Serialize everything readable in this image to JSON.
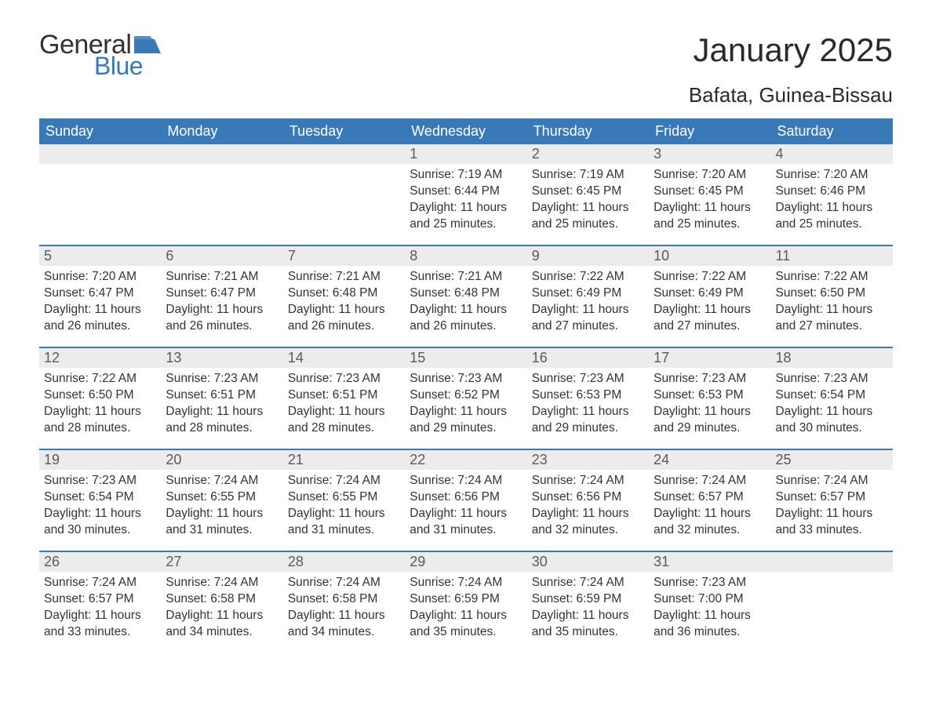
{
  "logo": {
    "text_general": "General",
    "text_blue": "Blue",
    "flag_color": "#3a79b7"
  },
  "title": "January 2025",
  "location": "Bafata, Guinea-Bissau",
  "colors": {
    "header_bg": "#3a79b7",
    "header_text": "#ffffff",
    "daynum_bg": "#ececec",
    "daynum_text": "#5a5a5a",
    "body_text": "#333333",
    "week_border": "#3a79b7",
    "page_bg": "#ffffff"
  },
  "day_headers": [
    "Sunday",
    "Monday",
    "Tuesday",
    "Wednesday",
    "Thursday",
    "Friday",
    "Saturday"
  ],
  "weeks": [
    [
      {
        "day": "",
        "sunrise": "",
        "sunset": "",
        "daylight": ""
      },
      {
        "day": "",
        "sunrise": "",
        "sunset": "",
        "daylight": ""
      },
      {
        "day": "",
        "sunrise": "",
        "sunset": "",
        "daylight": ""
      },
      {
        "day": "1",
        "sunrise": "Sunrise: 7:19 AM",
        "sunset": "Sunset: 6:44 PM",
        "daylight": "Daylight: 11 hours and 25 minutes."
      },
      {
        "day": "2",
        "sunrise": "Sunrise: 7:19 AM",
        "sunset": "Sunset: 6:45 PM",
        "daylight": "Daylight: 11 hours and 25 minutes."
      },
      {
        "day": "3",
        "sunrise": "Sunrise: 7:20 AM",
        "sunset": "Sunset: 6:45 PM",
        "daylight": "Daylight: 11 hours and 25 minutes."
      },
      {
        "day": "4",
        "sunrise": "Sunrise: 7:20 AM",
        "sunset": "Sunset: 6:46 PM",
        "daylight": "Daylight: 11 hours and 25 minutes."
      }
    ],
    [
      {
        "day": "5",
        "sunrise": "Sunrise: 7:20 AM",
        "sunset": "Sunset: 6:47 PM",
        "daylight": "Daylight: 11 hours and 26 minutes."
      },
      {
        "day": "6",
        "sunrise": "Sunrise: 7:21 AM",
        "sunset": "Sunset: 6:47 PM",
        "daylight": "Daylight: 11 hours and 26 minutes."
      },
      {
        "day": "7",
        "sunrise": "Sunrise: 7:21 AM",
        "sunset": "Sunset: 6:48 PM",
        "daylight": "Daylight: 11 hours and 26 minutes."
      },
      {
        "day": "8",
        "sunrise": "Sunrise: 7:21 AM",
        "sunset": "Sunset: 6:48 PM",
        "daylight": "Daylight: 11 hours and 26 minutes."
      },
      {
        "day": "9",
        "sunrise": "Sunrise: 7:22 AM",
        "sunset": "Sunset: 6:49 PM",
        "daylight": "Daylight: 11 hours and 27 minutes."
      },
      {
        "day": "10",
        "sunrise": "Sunrise: 7:22 AM",
        "sunset": "Sunset: 6:49 PM",
        "daylight": "Daylight: 11 hours and 27 minutes."
      },
      {
        "day": "11",
        "sunrise": "Sunrise: 7:22 AM",
        "sunset": "Sunset: 6:50 PM",
        "daylight": "Daylight: 11 hours and 27 minutes."
      }
    ],
    [
      {
        "day": "12",
        "sunrise": "Sunrise: 7:22 AM",
        "sunset": "Sunset: 6:50 PM",
        "daylight": "Daylight: 11 hours and 28 minutes."
      },
      {
        "day": "13",
        "sunrise": "Sunrise: 7:23 AM",
        "sunset": "Sunset: 6:51 PM",
        "daylight": "Daylight: 11 hours and 28 minutes."
      },
      {
        "day": "14",
        "sunrise": "Sunrise: 7:23 AM",
        "sunset": "Sunset: 6:51 PM",
        "daylight": "Daylight: 11 hours and 28 minutes."
      },
      {
        "day": "15",
        "sunrise": "Sunrise: 7:23 AM",
        "sunset": "Sunset: 6:52 PM",
        "daylight": "Daylight: 11 hours and 29 minutes."
      },
      {
        "day": "16",
        "sunrise": "Sunrise: 7:23 AM",
        "sunset": "Sunset: 6:53 PM",
        "daylight": "Daylight: 11 hours and 29 minutes."
      },
      {
        "day": "17",
        "sunrise": "Sunrise: 7:23 AM",
        "sunset": "Sunset: 6:53 PM",
        "daylight": "Daylight: 11 hours and 29 minutes."
      },
      {
        "day": "18",
        "sunrise": "Sunrise: 7:23 AM",
        "sunset": "Sunset: 6:54 PM",
        "daylight": "Daylight: 11 hours and 30 minutes."
      }
    ],
    [
      {
        "day": "19",
        "sunrise": "Sunrise: 7:23 AM",
        "sunset": "Sunset: 6:54 PM",
        "daylight": "Daylight: 11 hours and 30 minutes."
      },
      {
        "day": "20",
        "sunrise": "Sunrise: 7:24 AM",
        "sunset": "Sunset: 6:55 PM",
        "daylight": "Daylight: 11 hours and 31 minutes."
      },
      {
        "day": "21",
        "sunrise": "Sunrise: 7:24 AM",
        "sunset": "Sunset: 6:55 PM",
        "daylight": "Daylight: 11 hours and 31 minutes."
      },
      {
        "day": "22",
        "sunrise": "Sunrise: 7:24 AM",
        "sunset": "Sunset: 6:56 PM",
        "daylight": "Daylight: 11 hours and 31 minutes."
      },
      {
        "day": "23",
        "sunrise": "Sunrise: 7:24 AM",
        "sunset": "Sunset: 6:56 PM",
        "daylight": "Daylight: 11 hours and 32 minutes."
      },
      {
        "day": "24",
        "sunrise": "Sunrise: 7:24 AM",
        "sunset": "Sunset: 6:57 PM",
        "daylight": "Daylight: 11 hours and 32 minutes."
      },
      {
        "day": "25",
        "sunrise": "Sunrise: 7:24 AM",
        "sunset": "Sunset: 6:57 PM",
        "daylight": "Daylight: 11 hours and 33 minutes."
      }
    ],
    [
      {
        "day": "26",
        "sunrise": "Sunrise: 7:24 AM",
        "sunset": "Sunset: 6:57 PM",
        "daylight": "Daylight: 11 hours and 33 minutes."
      },
      {
        "day": "27",
        "sunrise": "Sunrise: 7:24 AM",
        "sunset": "Sunset: 6:58 PM",
        "daylight": "Daylight: 11 hours and 34 minutes."
      },
      {
        "day": "28",
        "sunrise": "Sunrise: 7:24 AM",
        "sunset": "Sunset: 6:58 PM",
        "daylight": "Daylight: 11 hours and 34 minutes."
      },
      {
        "day": "29",
        "sunrise": "Sunrise: 7:24 AM",
        "sunset": "Sunset: 6:59 PM",
        "daylight": "Daylight: 11 hours and 35 minutes."
      },
      {
        "day": "30",
        "sunrise": "Sunrise: 7:24 AM",
        "sunset": "Sunset: 6:59 PM",
        "daylight": "Daylight: 11 hours and 35 minutes."
      },
      {
        "day": "31",
        "sunrise": "Sunrise: 7:23 AM",
        "sunset": "Sunset: 7:00 PM",
        "daylight": "Daylight: 11 hours and 36 minutes."
      },
      {
        "day": "",
        "sunrise": "",
        "sunset": "",
        "daylight": ""
      }
    ]
  ]
}
